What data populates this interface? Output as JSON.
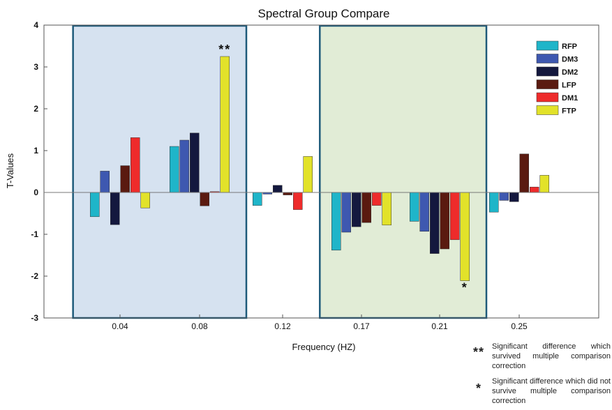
{
  "chart_data": {
    "type": "bar",
    "title": "Spectral Group Compare",
    "xlabel": "Frequency (HZ)",
    "ylabel": "T-Values",
    "categories": [
      "0.04",
      "0.08",
      "0.12",
      "0.17",
      "0.21",
      "0.25"
    ],
    "ylim": [
      -3,
      4
    ],
    "yticks": [
      "-3",
      "-2",
      "-1",
      "0",
      "1",
      "2",
      "3",
      "4"
    ],
    "legend_position": "top-right",
    "series": [
      {
        "name": "RFP",
        "color": "#1fb5c9",
        "values": [
          -0.58,
          1.1,
          -0.31,
          -1.38,
          -0.69,
          -0.47
        ]
      },
      {
        "name": "DM3",
        "color": "#3e58b0",
        "values": [
          0.51,
          1.25,
          -0.04,
          -0.95,
          -0.93,
          -0.19
        ]
      },
      {
        "name": "DM2",
        "color": "#14183e",
        "values": [
          -0.77,
          1.42,
          0.17,
          -0.82,
          -1.46,
          -0.22
        ]
      },
      {
        "name": "LFP",
        "color": "#5a1a10",
        "values": [
          0.64,
          -0.32,
          -0.06,
          -0.72,
          -1.35,
          0.92
        ]
      },
      {
        "name": "DM1",
        "color": "#ee2b2b",
        "values": [
          1.31,
          0.02,
          -0.41,
          -0.31,
          -1.13,
          0.13
        ]
      },
      {
        "name": "FTP",
        "color": "#e2e22a",
        "values": [
          -0.37,
          3.25,
          0.86,
          -0.78,
          -2.11,
          0.41
        ]
      }
    ],
    "annotations": [
      {
        "text": "**",
        "category": "0.08",
        "series": "FTP"
      },
      {
        "text": "*",
        "category": "0.21",
        "series": "FTP"
      }
    ],
    "highlight_regions": [
      {
        "from_category": "0.04",
        "to_category": "0.08",
        "color": "#d6e2f0"
      },
      {
        "from_category": "0.17",
        "to_category": "0.21",
        "color": "#e1ecd6"
      }
    ]
  },
  "footnotes": [
    {
      "symbol": "**",
      "text": "Significant difference which survived multiple comparison correction"
    },
    {
      "symbol": "*",
      "text": "Significant difference which did not survive multiple comparison correction"
    }
  ]
}
